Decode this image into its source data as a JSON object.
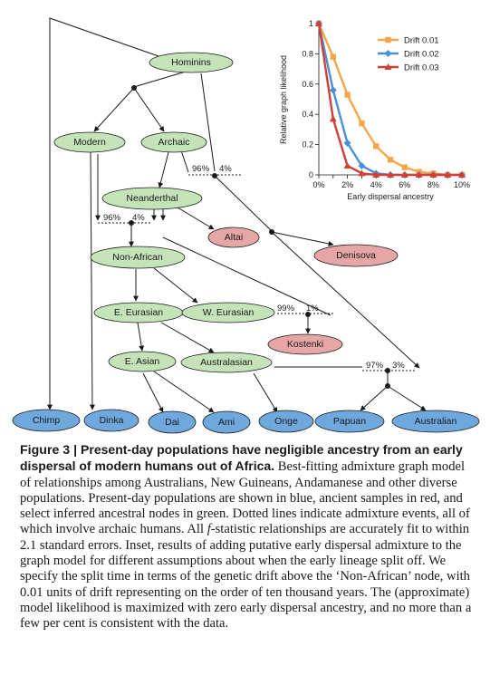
{
  "colors": {
    "modern_fill": "#6fa8dc",
    "ancient_fill": "#e6a6a6",
    "inferred_fill": "#c5e3b9",
    "drift_001": "#f5a54a",
    "drift_002": "#4a90d9",
    "drift_003": "#d0403a"
  },
  "graph": {
    "inferred_nodes": [
      {
        "id": "hominins",
        "label": "Hominins"
      },
      {
        "id": "modern",
        "label": "Modern"
      },
      {
        "id": "archaic",
        "label": "Archaic"
      },
      {
        "id": "neanderthal",
        "label": "Neanderthal"
      },
      {
        "id": "non_african",
        "label": "Non-African"
      },
      {
        "id": "e_eurasian",
        "label": "E. Eurasian"
      },
      {
        "id": "w_eurasian",
        "label": "W. Eurasian"
      },
      {
        "id": "e_asian",
        "label": "E. Asian"
      },
      {
        "id": "australasian",
        "label": "Australasian"
      }
    ],
    "ancient_nodes": [
      {
        "id": "altai",
        "label": "Altai"
      },
      {
        "id": "denisova",
        "label": "Denisova"
      },
      {
        "id": "kostenki",
        "label": "Kostenki"
      }
    ],
    "present_day_nodes": [
      {
        "id": "chimp",
        "label": "Chimp"
      },
      {
        "id": "dinka",
        "label": "Dinka"
      },
      {
        "id": "dai",
        "label": "Dai"
      },
      {
        "id": "ami",
        "label": "Ami"
      },
      {
        "id": "onge",
        "label": "Onge"
      },
      {
        "id": "papuan",
        "label": "Papuan"
      },
      {
        "id": "australian",
        "label": "Australian"
      }
    ],
    "admixture_events": [
      {
        "id": "denisova_admix",
        "major": "96%",
        "minor": "4%"
      },
      {
        "id": "neanderthal_admix",
        "major": "96%",
        "minor": "4%"
      },
      {
        "id": "kostenki_admix",
        "major": "99%",
        "minor": "1%"
      },
      {
        "id": "papuan_admix",
        "major": "97%",
        "minor": "3%"
      }
    ]
  },
  "chart_data": {
    "type": "line",
    "title": "",
    "xlabel": "Early dispersal ancestry",
    "ylabel": "Relative graph likelihood",
    "xlim": [
      0,
      10
    ],
    "ylim": [
      0,
      1
    ],
    "x_unit": "%",
    "x_ticks": [
      "0%",
      "2%",
      "4%",
      "6%",
      "8%",
      "10%"
    ],
    "y_ticks": [
      "0",
      "0.2",
      "0.4",
      "0.6",
      "0.8",
      "1"
    ],
    "legend_position": "top-right",
    "grid": false,
    "x": [
      0,
      1,
      2,
      3,
      4,
      5,
      6,
      7,
      8,
      9,
      10
    ],
    "series": [
      {
        "name": "Drift 0.01",
        "marker": "square",
        "color": "#f5a54a",
        "values": [
          1.0,
          0.78,
          0.53,
          0.34,
          0.19,
          0.1,
          0.05,
          0.02,
          0.01,
          0.0,
          0.0
        ]
      },
      {
        "name": "Drift 0.02",
        "marker": "diamond",
        "color": "#4a90d9",
        "values": [
          1.0,
          0.56,
          0.21,
          0.06,
          0.01,
          0.0,
          0.0,
          0.0,
          0.0,
          0.0,
          0.0
        ]
      },
      {
        "name": "Drift 0.03",
        "marker": "triangle",
        "color": "#d0403a",
        "values": [
          1.0,
          0.37,
          0.06,
          0.01,
          0.0,
          0.0,
          0.0,
          0.0,
          0.0,
          0.0,
          0.0
        ]
      }
    ]
  },
  "caption": {
    "figure_label": "Figure 3 | ",
    "headline": "Present-day populations have negligible ancestry from an early dispersal of modern humans out of Africa.",
    "text_a": " Best-fitting admixture graph model of relationships among Australians, New Guineans, Andamanese and other diverse populations. Present-day populations are shown in blue, ancient samples in red, and select inferred ancestral nodes in green. Dotted lines indicate admixture events, all of which involve archaic humans. All ",
    "f_italic": "f",
    "text_b": "-statistic relationships are accurately fit to within 2.1 standard errors. Inset, results of adding putative early dispersal admixture to the graph model for different assumptions about when the early lineage split off. We specify the split time in terms of the genetic drift above the ‘Non-African’ node, with 0.01 units of drift representing on the order of ten thousand years. The (approximate) model likelihood is maximized with zero early dispersal ancestry, and no more than a few per cent is consistent with the data."
  }
}
